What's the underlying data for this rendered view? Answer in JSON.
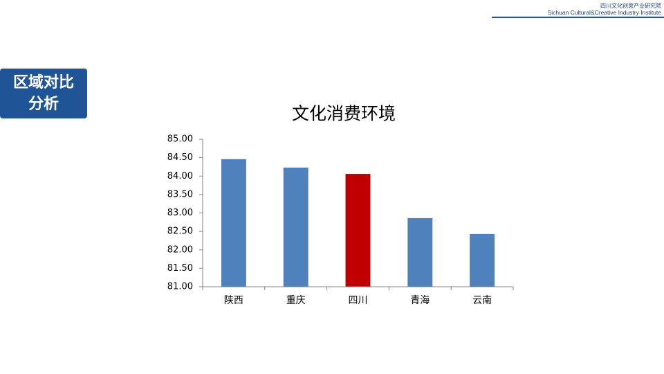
{
  "header": {
    "institute_cn": "四川文化创意产业研究院",
    "institute_en": "Sichuan Cultural&Creative Industry Institute"
  },
  "section": {
    "lines": [
      "区域对比",
      "分析"
    ]
  },
  "chart_data": {
    "type": "bar",
    "title": "文化消费环境",
    "categories": [
      "陕西",
      "重庆",
      "四川",
      "青海",
      "云南"
    ],
    "values": [
      84.46,
      84.23,
      84.06,
      82.86,
      82.43
    ],
    "colors": [
      "#4f81bd",
      "#4f81bd",
      "#c00000",
      "#4f81bd",
      "#4f81bd"
    ],
    "ylim": [
      81,
      85
    ],
    "yticks": [
      {
        "value": 81,
        "label": "81.00"
      },
      {
        "value": 81.5,
        "label": "81.50"
      },
      {
        "value": 82,
        "label": "82.00"
      },
      {
        "value": 82.5,
        "label": "82.50"
      },
      {
        "value": 83,
        "label": "83.00"
      },
      {
        "value": 83.5,
        "label": "83.50"
      },
      {
        "value": 84,
        "label": "84.00"
      },
      {
        "value": 84.5,
        "label": "84.50"
      },
      {
        "value": 85,
        "label": "85.00"
      }
    ],
    "grid": false
  }
}
